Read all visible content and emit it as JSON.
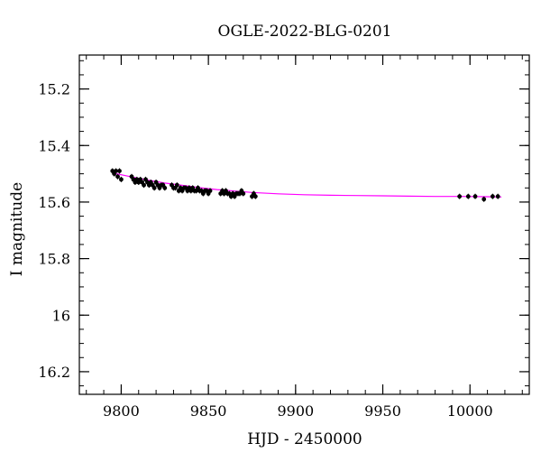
{
  "chart_data": {
    "type": "scatter",
    "title": "OGLE-2022-BLG-0201",
    "xlabel": "HJD - 2450000",
    "ylabel": "I magnitude",
    "xlim": [
      9776,
      10034
    ],
    "ylim": [
      16.28,
      15.08
    ],
    "y_inverted": true,
    "x_ticks": [
      9800,
      9850,
      9900,
      9950,
      10000
    ],
    "x_tick_labels": [
      "9800",
      "9850",
      "9900",
      "9950",
      "10000"
    ],
    "y_ticks": [
      15.2,
      15.4,
      15.6,
      15.8,
      16.0,
      16.2
    ],
    "y_tick_labels": [
      "15.2",
      "15.4",
      "15.6",
      "15.8",
      "16",
      "16.2"
    ],
    "x_minor_step": 10,
    "y_minor_step": 0.05,
    "grid": false,
    "legend": "none",
    "colors": {
      "points": "#000000",
      "model": "#ff00ff",
      "axes": "#000000"
    },
    "series": [
      {
        "kind": "points",
        "x": [
          9795,
          9796,
          9797,
          9798,
          9799,
          9800,
          9806,
          9807,
          9808,
          9809,
          9810,
          9811,
          9812,
          9813,
          9814,
          9815,
          9816,
          9817,
          9818,
          9819,
          9820,
          9821,
          9822,
          9823,
          9824,
          9825,
          9829,
          9830,
          9831,
          9832,
          9833,
          9834,
          9835,
          9836,
          9837,
          9838,
          9839,
          9840,
          9841,
          9842,
          9843,
          9844,
          9845,
          9846,
          9847,
          9848,
          9849,
          9850,
          9851,
          9857,
          9858,
          9859,
          9860,
          9861,
          9862,
          9863,
          9864,
          9865,
          9866,
          9867,
          9868,
          9869,
          9870,
          9875,
          9876,
          9877,
          9994,
          9999,
          10003,
          10008,
          10013,
          10016
        ],
        "y": [
          15.49,
          15.5,
          15.49,
          15.51,
          15.49,
          15.52,
          15.51,
          15.52,
          15.53,
          15.52,
          15.53,
          15.52,
          15.53,
          15.54,
          15.52,
          15.53,
          15.54,
          15.53,
          15.54,
          15.55,
          15.53,
          15.54,
          15.55,
          15.54,
          15.54,
          15.55,
          15.54,
          15.55,
          15.55,
          15.54,
          15.56,
          15.55,
          15.56,
          15.55,
          15.55,
          15.56,
          15.55,
          15.56,
          15.55,
          15.56,
          15.56,
          15.55,
          15.56,
          15.56,
          15.57,
          15.56,
          15.56,
          15.57,
          15.56,
          15.57,
          15.56,
          15.57,
          15.56,
          15.57,
          15.57,
          15.58,
          15.57,
          15.58,
          15.57,
          15.57,
          15.57,
          15.56,
          15.57,
          15.58,
          15.57,
          15.58,
          15.58,
          15.58,
          15.58,
          15.59,
          15.58,
          15.58
        ]
      },
      {
        "kind": "model",
        "x": [
          9795,
          9805,
          9815,
          9825,
          9835,
          9845,
          9855,
          9865,
          9875,
          9890,
          9905,
          9920,
          9935,
          9950,
          9965,
          9980,
          9995,
          10010,
          10018
        ],
        "y": [
          15.497,
          15.51,
          15.522,
          15.533,
          15.541,
          15.549,
          15.556,
          15.561,
          15.566,
          15.571,
          15.574,
          15.576,
          15.577,
          15.578,
          15.579,
          15.58,
          15.58,
          15.581,
          15.582
        ]
      }
    ]
  }
}
